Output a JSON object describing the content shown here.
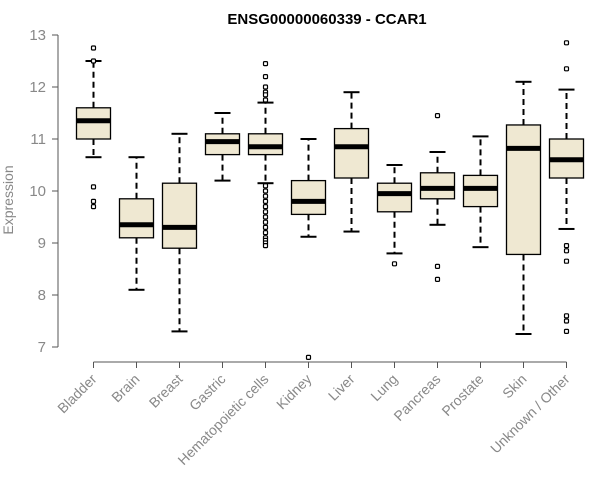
{
  "chart_data": {
    "type": "box",
    "title": "ENSG00000060339 - CCAR1",
    "ylabel": "Expression",
    "xlabel": "",
    "ylim": [
      7,
      13
    ],
    "yticks": [
      7,
      8,
      9,
      10,
      11,
      12,
      13
    ],
    "colors": {
      "box_fill": "#EFE8D2",
      "median": "#000000",
      "axis": "#555555",
      "tick_label": "#888888"
    },
    "categories": [
      "Bladder",
      "Brain",
      "Breast",
      "Gastric",
      "Hematopoietic cells",
      "Kidney",
      "Liver",
      "Lung",
      "Pancreas",
      "Prostate",
      "Skin",
      "Unknown / Other"
    ],
    "boxes": [
      {
        "category": "Bladder",
        "whisker_low": 10.65,
        "q1": 11.0,
        "median": 11.35,
        "q3": 11.6,
        "whisker_high": 12.5,
        "outliers": [
          12.75,
          12.5,
          10.08,
          9.8,
          9.7
        ]
      },
      {
        "category": "Brain",
        "whisker_low": 8.1,
        "q1": 9.1,
        "median": 9.35,
        "q3": 9.85,
        "whisker_high": 10.65,
        "outliers": []
      },
      {
        "category": "Breast",
        "whisker_low": 7.3,
        "q1": 8.9,
        "median": 9.3,
        "q3": 10.15,
        "whisker_high": 11.1,
        "outliers": []
      },
      {
        "category": "Gastric",
        "whisker_low": 10.2,
        "q1": 10.7,
        "median": 10.95,
        "q3": 11.1,
        "whisker_high": 11.5,
        "outliers": []
      },
      {
        "category": "Hematopoietic cells",
        "whisker_low": 10.15,
        "q1": 10.7,
        "median": 10.85,
        "q3": 11.1,
        "whisker_high": 11.7,
        "outliers": [
          12.45,
          12.2,
          12.0,
          11.9,
          11.85,
          11.75,
          10.1,
          10.0,
          9.9,
          9.8,
          9.7,
          9.6,
          9.5,
          9.4,
          9.3,
          9.2,
          9.1,
          9.05,
          9.0,
          8.95
        ]
      },
      {
        "category": "Kidney",
        "whisker_low": 9.12,
        "q1": 9.55,
        "median": 9.8,
        "q3": 10.2,
        "whisker_high": 11.0,
        "outliers": [
          6.8
        ]
      },
      {
        "category": "Liver",
        "whisker_low": 9.22,
        "q1": 10.25,
        "median": 10.85,
        "q3": 11.2,
        "whisker_high": 11.9,
        "outliers": []
      },
      {
        "category": "Lung",
        "whisker_low": 8.8,
        "q1": 9.6,
        "median": 9.95,
        "q3": 10.15,
        "whisker_high": 10.5,
        "outliers": [
          8.6
        ]
      },
      {
        "category": "Pancreas",
        "whisker_low": 9.35,
        "q1": 9.85,
        "median": 10.05,
        "q3": 10.35,
        "whisker_high": 10.75,
        "outliers": [
          11.45,
          8.55,
          8.3
        ]
      },
      {
        "category": "Prostate",
        "whisker_low": 8.92,
        "q1": 9.7,
        "median": 10.05,
        "q3": 10.3,
        "whisker_high": 11.05,
        "outliers": []
      },
      {
        "category": "Skin",
        "whisker_low": 7.25,
        "q1": 8.78,
        "median": 10.82,
        "q3": 11.27,
        "whisker_high": 12.1,
        "outliers": []
      },
      {
        "category": "Unknown / Other",
        "whisker_low": 9.27,
        "q1": 10.25,
        "median": 10.6,
        "q3": 11.0,
        "whisker_high": 11.95,
        "outliers": [
          12.85,
          12.35,
          8.95,
          8.85,
          8.65,
          7.6,
          7.5,
          7.3
        ]
      }
    ]
  }
}
